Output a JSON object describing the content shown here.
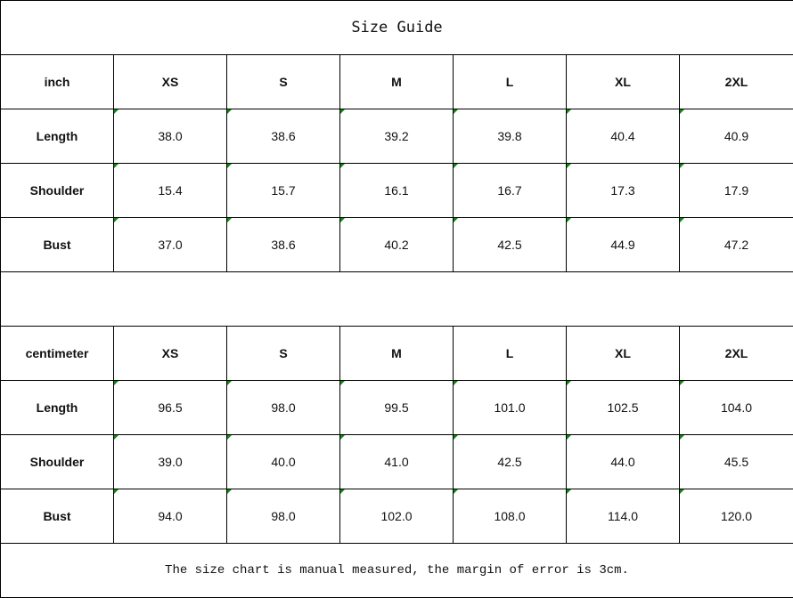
{
  "title": "Size Guide",
  "sizes": [
    "XS",
    "S",
    "M",
    "L",
    "XL",
    "2XL"
  ],
  "marker_color": "#0a8a0a",
  "tables": [
    {
      "unit": "inch",
      "rows": [
        {
          "label": "Length",
          "values": [
            "38.0",
            "38.6",
            "39.2",
            "39.8",
            "40.4",
            "40.9"
          ]
        },
        {
          "label": "Shoulder",
          "values": [
            "15.4",
            "15.7",
            "16.1",
            "16.7",
            "17.3",
            "17.9"
          ]
        },
        {
          "label": "Bust",
          "values": [
            "37.0",
            "38.6",
            "40.2",
            "42.5",
            "44.9",
            "47.2"
          ]
        }
      ]
    },
    {
      "unit": "centimeter",
      "rows": [
        {
          "label": "Length",
          "values": [
            "96.5",
            "98.0",
            "99.5",
            "101.0",
            "102.5",
            "104.0"
          ]
        },
        {
          "label": "Shoulder",
          "values": [
            "39.0",
            "40.0",
            "41.0",
            "42.5",
            "44.0",
            "45.5"
          ]
        },
        {
          "label": "Bust",
          "values": [
            "94.0",
            "98.0",
            "102.0",
            "108.0",
            "114.0",
            "120.0"
          ]
        }
      ]
    }
  ],
  "note": "The size chart is manual measured, the margin of error is 3cm."
}
